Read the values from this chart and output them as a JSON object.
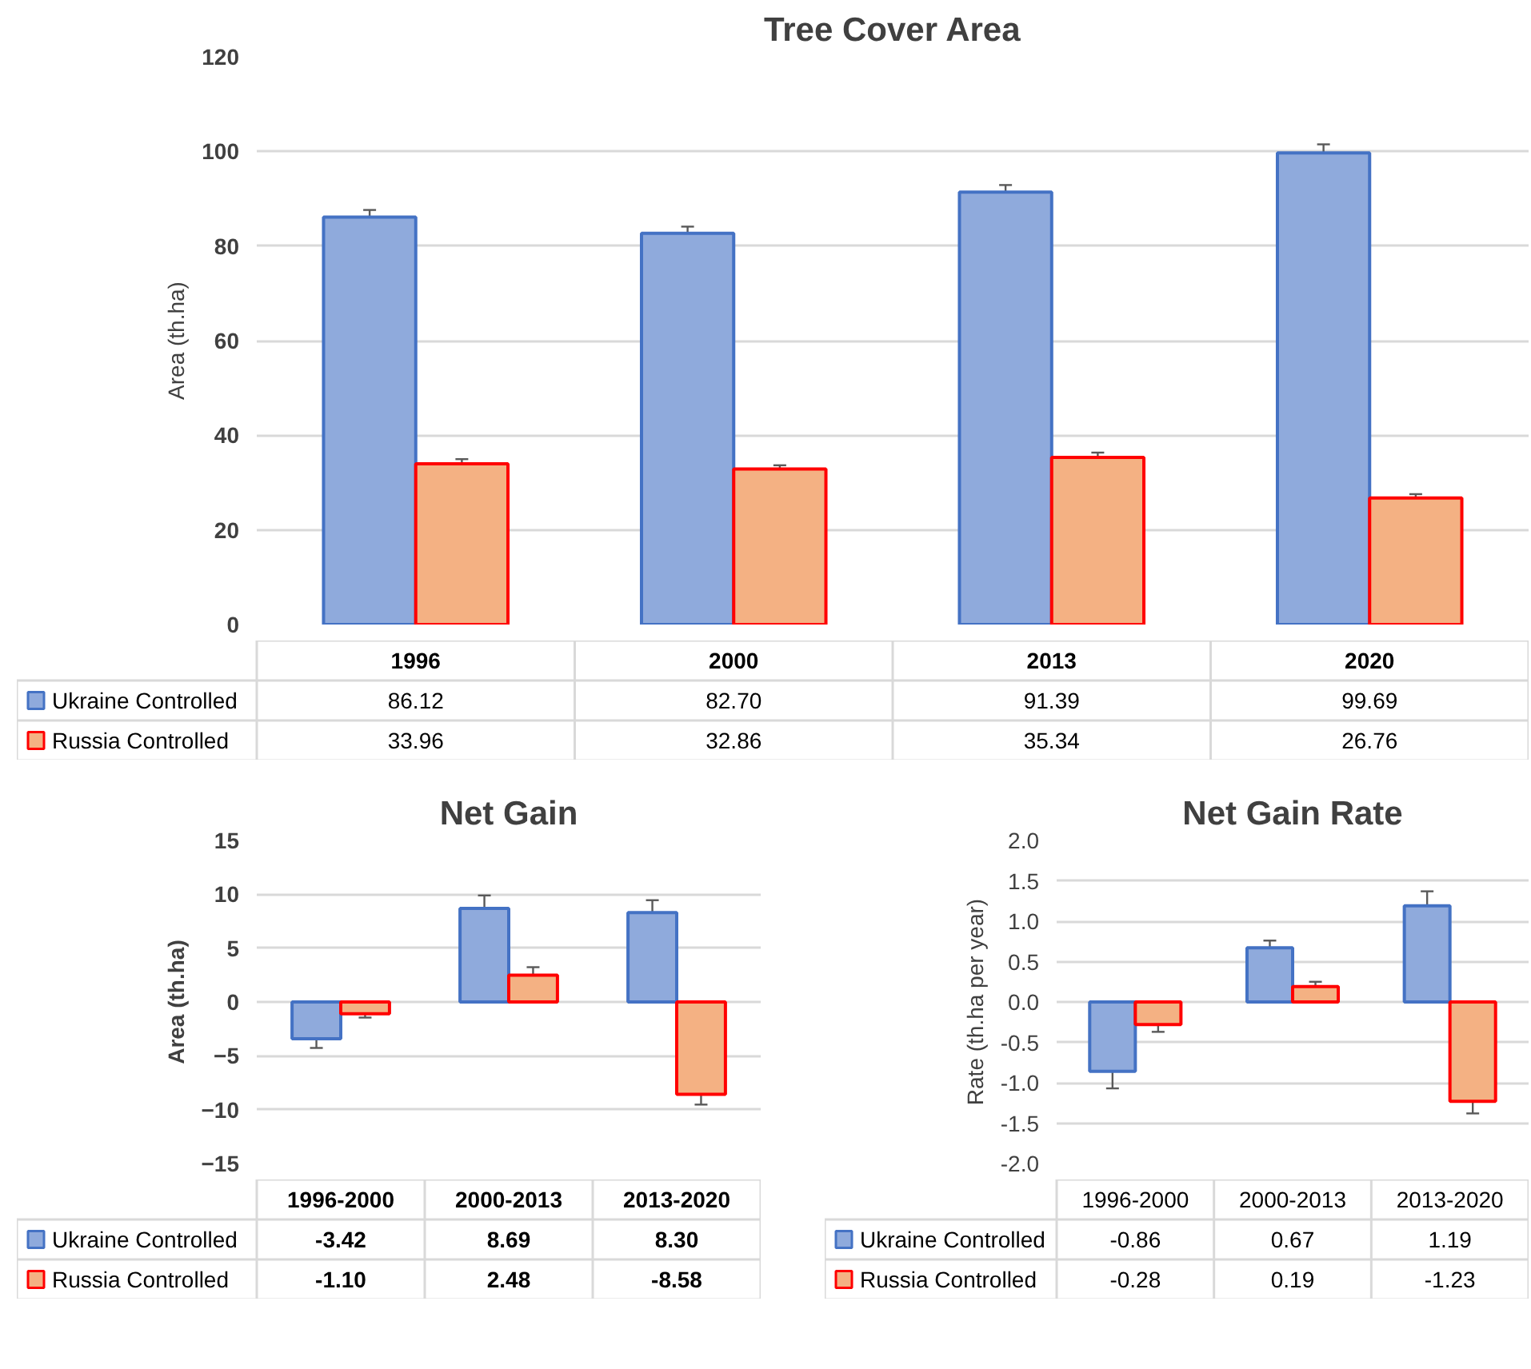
{
  "chart_data": [
    {
      "type": "bar",
      "title": "Tree Cover Area",
      "ylabel": "Area (th.ha)",
      "categories": [
        "1996",
        "2000",
        "2013",
        "2020"
      ],
      "ylim": [
        0,
        120
      ],
      "yticks": [
        0,
        20,
        40,
        60,
        80,
        100,
        120
      ],
      "grid": "y",
      "legend": "bottom left",
      "series": [
        {
          "name": "Ukraine Controlled",
          "color": "#8faadc",
          "values": [
            86.12,
            82.7,
            91.39,
            99.69
          ],
          "value_labels": [
            "86.12",
            "82.70",
            "91.39",
            "99.69"
          ],
          "errors": [
            1.5,
            1.4,
            1.5,
            1.8
          ]
        },
        {
          "name": "Russia Controlled",
          "color": "#f4b183",
          "values": [
            33.96,
            32.86,
            35.34,
            26.76
          ],
          "value_labels": [
            "33.96",
            "32.86",
            "35.34",
            "26.76"
          ],
          "errors": [
            1.0,
            0.8,
            1.0,
            0.8
          ]
        }
      ]
    },
    {
      "type": "bar",
      "title": "Net Gain",
      "ylabel": "Area (th.ha)",
      "categories": [
        "1996-2000",
        "2000-2013",
        "2013-2020"
      ],
      "ylim": [
        -15,
        15
      ],
      "yticks": [
        -15,
        -10,
        -5,
        0,
        5,
        10,
        15
      ],
      "grid": "y",
      "legend": "bottom left",
      "series": [
        {
          "name": "Ukraine Controlled",
          "color": "#8faadc",
          "values": [
            -3.42,
            8.69,
            8.3
          ],
          "value_labels": [
            "-3.42",
            "8.69",
            "8.30"
          ],
          "errors": [
            0.85,
            1.2,
            1.15
          ]
        },
        {
          "name": "Russia Controlled",
          "color": "#f4b183",
          "values": [
            -1.1,
            2.48,
            -8.58
          ],
          "value_labels": [
            "-1.10",
            "2.48",
            "-8.58"
          ],
          "errors": [
            0.35,
            0.75,
            0.95
          ]
        }
      ]
    },
    {
      "type": "bar",
      "title": "Net Gain Rate",
      "ylabel": "Rate (th.ha per year)",
      "categories": [
        "1996-2000",
        "2000-2013",
        "2013-2020"
      ],
      "ylim": [
        -2,
        2
      ],
      "yticks": [
        {
          "value": -2,
          "label": "-2.0"
        },
        {
          "value": -1.5,
          "label": "-1.5"
        },
        {
          "value": -1,
          "label": "-1.0"
        },
        {
          "value": -0.5,
          "label": "-0.5"
        },
        {
          "value": 0,
          "label": "0.0"
        },
        {
          "value": 0.5,
          "label": "0.5"
        },
        {
          "value": 1,
          "label": "1.0"
        },
        {
          "value": 1.5,
          "label": "1.5"
        },
        {
          "value": 2,
          "label": "2.0"
        }
      ],
      "grid": "y",
      "legend": "bottom left",
      "series": [
        {
          "name": "Ukraine Controlled",
          "color": "#8faadc",
          "values": [
            -0.86,
            0.67,
            1.19
          ],
          "value_labels": [
            "-0.86",
            "0.67",
            "1.19"
          ],
          "errors": [
            0.21,
            0.09,
            0.18
          ]
        },
        {
          "name": "Russia Controlled",
          "color": "#f4b183",
          "values": [
            -0.28,
            0.19,
            -1.23
          ],
          "value_labels": [
            "-0.28",
            "0.19",
            "-1.23"
          ],
          "errors": [
            0.09,
            0.06,
            0.15
          ]
        }
      ]
    }
  ]
}
